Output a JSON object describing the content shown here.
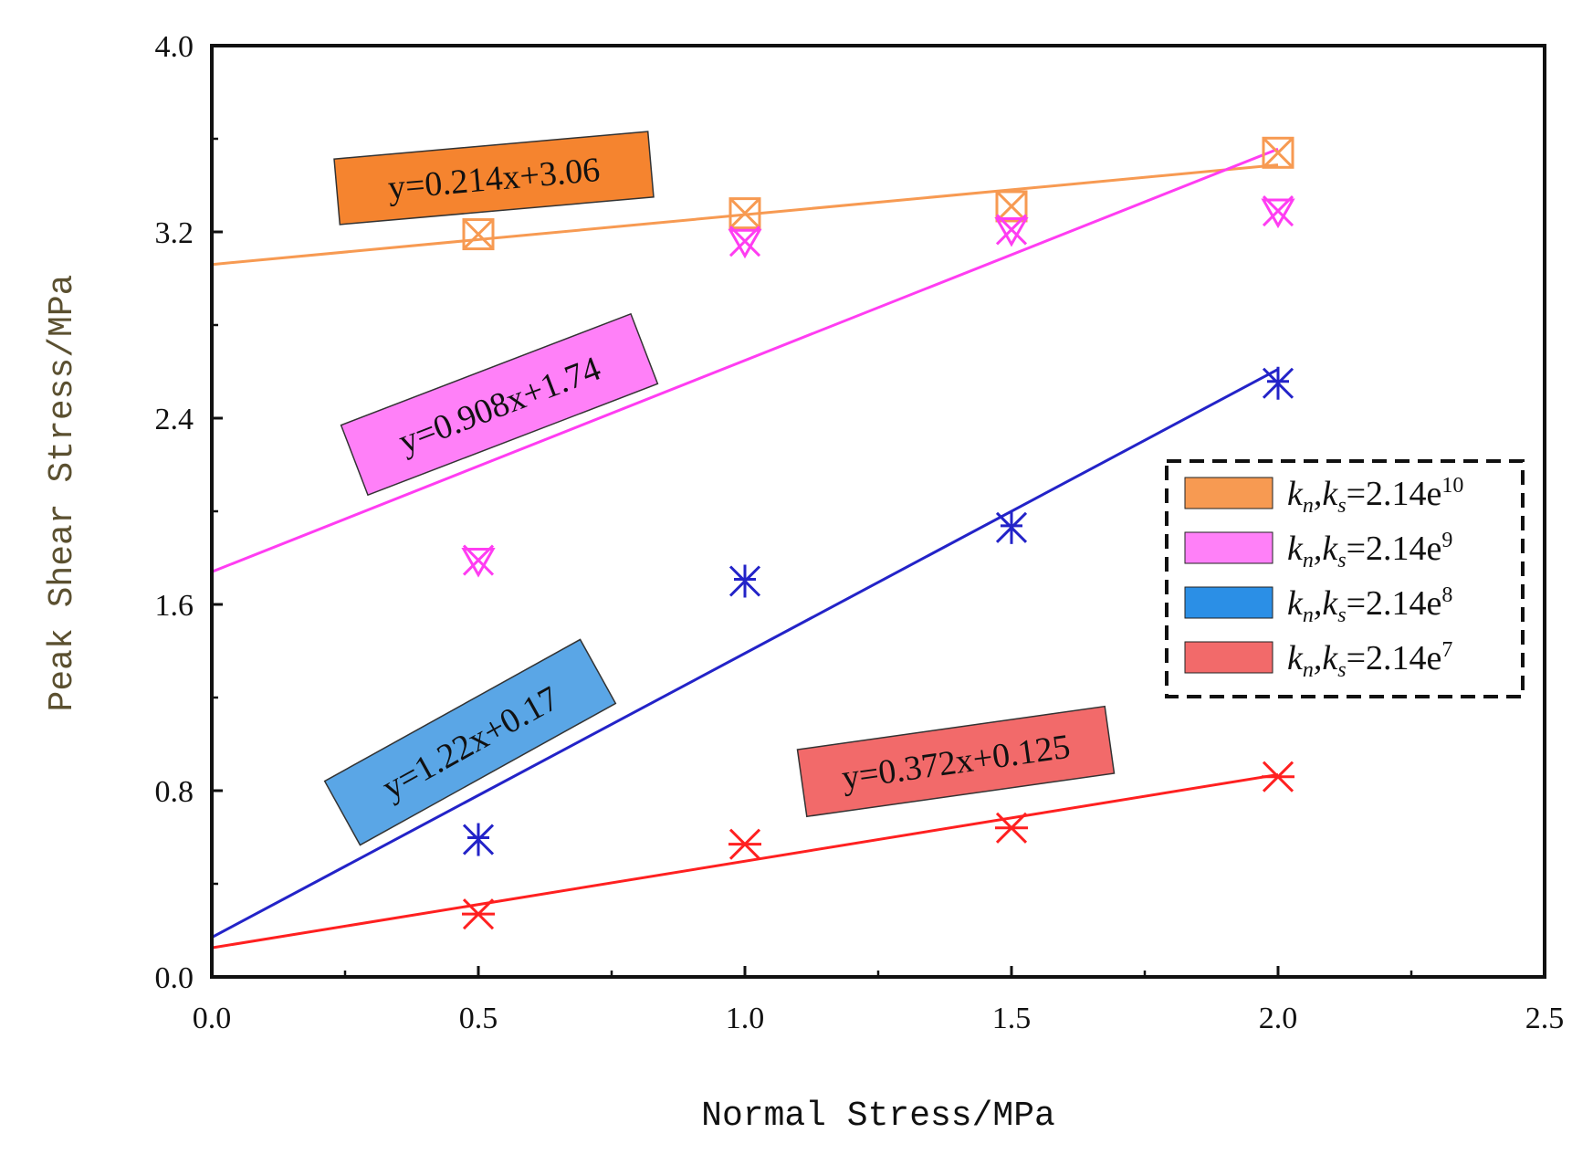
{
  "chart_data": {
    "type": "scatter",
    "title": "",
    "xlabel": "Normal Stress/MPa",
    "ylabel": "Peak Shear Stress/MPa",
    "xlim": [
      0.0,
      2.5
    ],
    "ylim": [
      0.0,
      4.0
    ],
    "xticks": [
      "0.0",
      "0.5",
      "1.0",
      "1.5",
      "2.0",
      "2.5"
    ],
    "yticks": [
      "0.0",
      "0.8",
      "1.6",
      "2.4",
      "3.2",
      "4.0"
    ],
    "legend_position": "right",
    "series": [
      {
        "name": "kn,ks=2.14e10",
        "legend_label": "kn,ks=2.14e10",
        "color": "#f79a52",
        "label_color": "#f5842f",
        "marker": "boxed-x",
        "x": [
          0.5,
          1.0,
          1.5,
          2.0
        ],
        "y": [
          3.19,
          3.28,
          3.31,
          3.54
        ],
        "fit": {
          "slope": 0.214,
          "intercept": 3.06,
          "label": "y=0.214x+3.06"
        }
      },
      {
        "name": "kn,ks=2.14e9",
        "legend_label": "kn,ks=2.14e9",
        "color": "#ff3df2",
        "label_color": "#ff80f8",
        "marker": "x-triangle",
        "x": [
          0.5,
          1.0,
          1.5,
          2.0
        ],
        "y": [
          1.79,
          3.16,
          3.21,
          3.29
        ],
        "fit": {
          "slope": 0.908,
          "intercept": 1.74,
          "label": "y=0.908x+1.74"
        }
      },
      {
        "name": "kn,ks=2.14e8",
        "legend_label": "kn,ks=2.14e8",
        "color": "#2323c8",
        "label_color": "#5aa6e6",
        "marker": "x-star",
        "x": [
          0.5,
          1.0,
          1.5,
          2.0
        ],
        "y": [
          0.59,
          1.7,
          1.93,
          2.55
        ],
        "fit": {
          "slope": 1.22,
          "intercept": 0.17,
          "label": "y=1.22x+0.17"
        }
      },
      {
        "name": "kn,ks=2.14e7",
        "legend_label": "kn,ks=2.14e7",
        "color": "#ff2020",
        "label_color": "#f26a6a",
        "marker": "asterisk",
        "x": [
          0.5,
          1.0,
          1.5,
          2.0
        ],
        "y": [
          0.27,
          0.57,
          0.64,
          0.86
        ],
        "fit": {
          "slope": 0.372,
          "intercept": 0.125,
          "label": "y=0.372x+0.125"
        }
      }
    ],
    "legend_entries": [
      {
        "prefix": "k",
        "sub1": "n",
        "mid": ",k",
        "sub2": "s",
        "eq": "=2.14e",
        "exp": "10"
      },
      {
        "prefix": "k",
        "sub1": "n",
        "mid": ",k",
        "sub2": "s",
        "eq": "=2.14e",
        "exp": "9"
      },
      {
        "prefix": "k",
        "sub1": "n",
        "mid": ",k",
        "sub2": "s",
        "eq": "=2.14e",
        "exp": "8"
      },
      {
        "prefix": "k",
        "sub1": "n",
        "mid": ",k",
        "sub2": "s",
        "eq": "=2.14e",
        "exp": "7"
      }
    ],
    "legend_swatch_colors": [
      "#f79a52",
      "#ff80f8",
      "#2b8fe6",
      "#f26a6a"
    ]
  }
}
